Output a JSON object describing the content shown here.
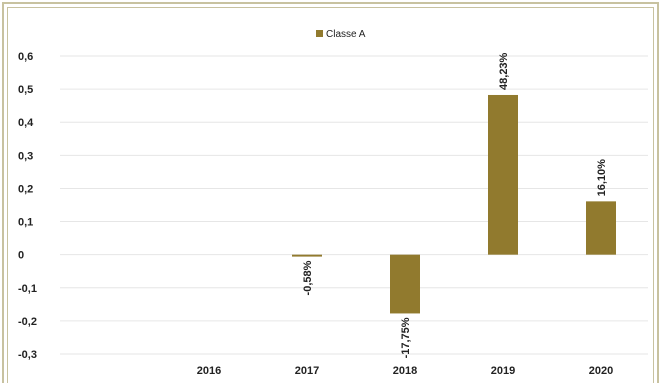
{
  "chart_data": {
    "type": "bar",
    "categories": [
      "2016",
      "2017",
      "2018",
      "2019",
      "2020"
    ],
    "series": [
      {
        "name": "Classe A",
        "values": [
          null,
          -0.0058,
          -0.1775,
          0.4823,
          0.161
        ],
        "labels": [
          "",
          "-0,58%",
          "-17,75%",
          "48,23%",
          "16,10%"
        ]
      }
    ],
    "ylim": [
      -0.3,
      0.6
    ],
    "yticks": [
      0.6,
      0.5,
      0.4,
      0.3,
      0.2,
      0.1,
      0,
      -0.1,
      -0.2,
      -0.3
    ],
    "ytick_labels": [
      "0,6",
      "0,5",
      "0,4",
      "0,3",
      "0,2",
      "0,1",
      "0",
      "-0,1",
      "-0,2",
      "-0,3"
    ],
    "legend_position": "top-center",
    "grid": true,
    "colors": {
      "bar": "#917a2e",
      "grid": "#e6e6e6",
      "frame": "#c8c2a0"
    }
  }
}
